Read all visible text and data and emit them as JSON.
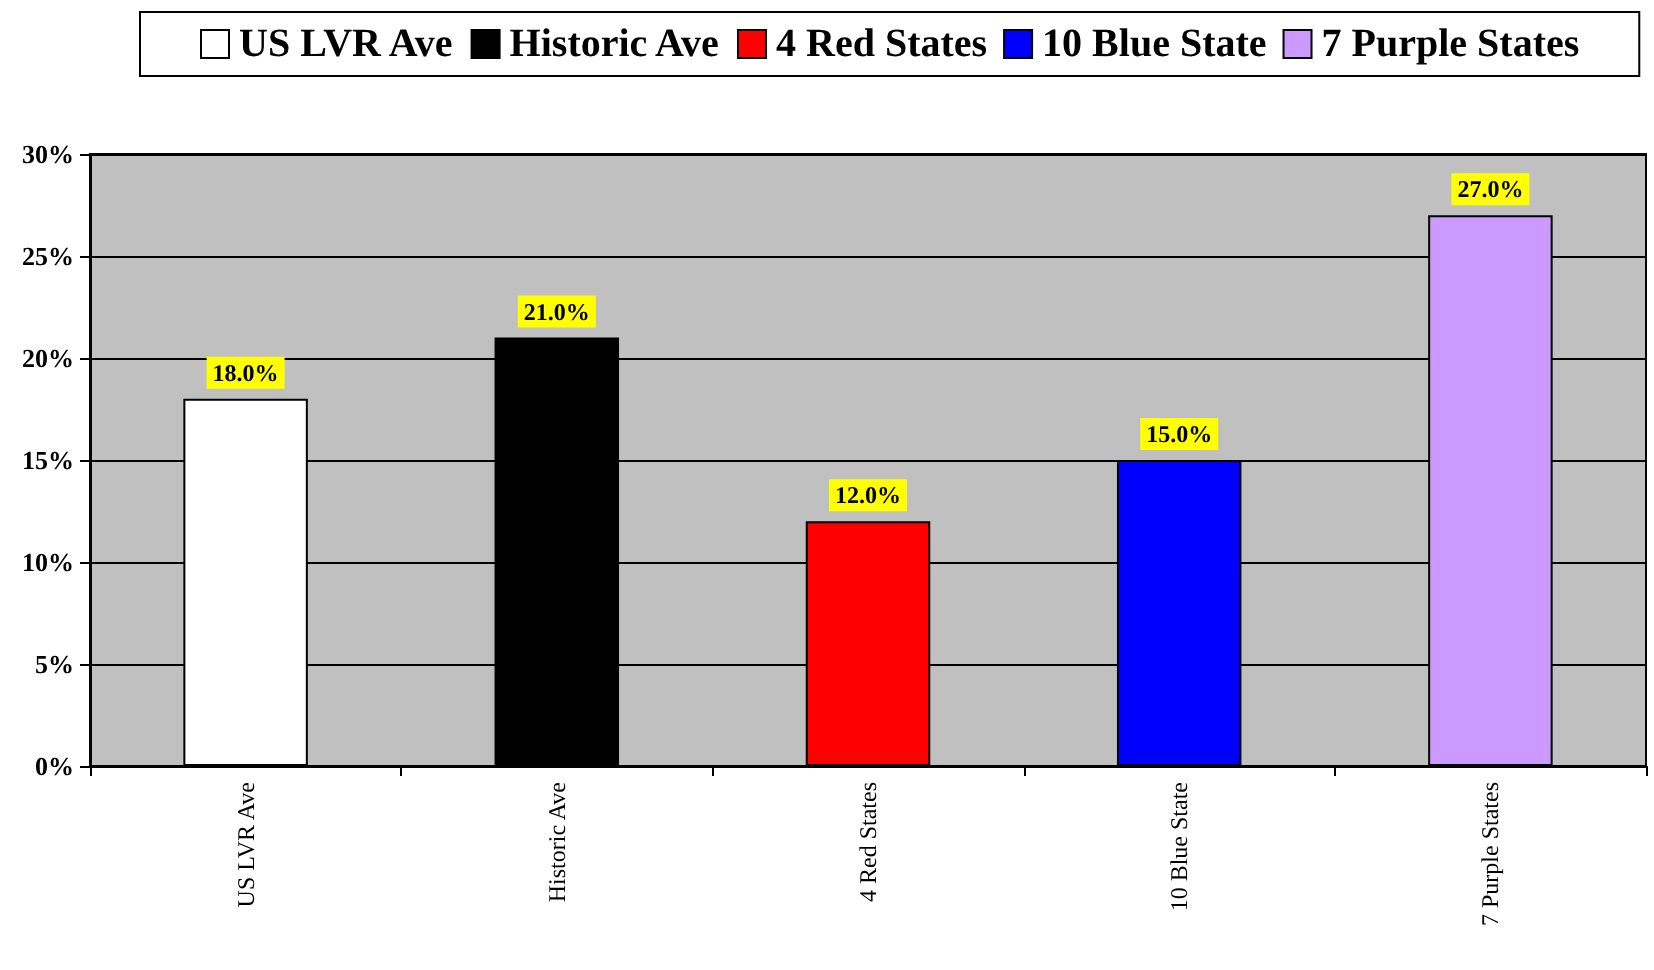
{
  "chart_data": {
    "type": "bar",
    "categories": [
      "US LVR Ave",
      "Historic Ave",
      "4 Red States",
      "10 Blue State",
      "7 Purple States"
    ],
    "series": [
      {
        "name": "US LVR Ave",
        "color": "#ffffff",
        "values": [
          18,
          null,
          null,
          null,
          null
        ],
        "value_labels": [
          "18.0%",
          null,
          null,
          null,
          null
        ]
      },
      {
        "name": "Historic Ave",
        "color": "#000000",
        "values": [
          null,
          21,
          null,
          null,
          null
        ],
        "value_labels": [
          null,
          "21.0%",
          null,
          null,
          null
        ]
      },
      {
        "name": "4 Red States",
        "color": "#ff0000",
        "values": [
          null,
          null,
          12,
          null,
          null
        ],
        "value_labels": [
          null,
          null,
          "12.0%",
          null,
          null
        ]
      },
      {
        "name": "10 Blue State",
        "color": "#0000ff",
        "values": [
          null,
          null,
          null,
          15,
          null
        ],
        "value_labels": [
          null,
          null,
          null,
          "15.0%",
          null
        ]
      },
      {
        "name": "7 Purple States",
        "color": "#cc99ff",
        "values": [
          null,
          null,
          null,
          null,
          27
        ],
        "value_labels": [
          null,
          null,
          null,
          null,
          "27.0%"
        ]
      }
    ],
    "ylim": [
      0,
      30
    ],
    "yticks": [
      {
        "value": 0,
        "label": "0%"
      },
      {
        "value": 5,
        "label": "5%"
      },
      {
        "value": 10,
        "label": "10%"
      },
      {
        "value": 15,
        "label": "15%"
      },
      {
        "value": 20,
        "label": "20%"
      },
      {
        "value": 25,
        "label": "25%"
      },
      {
        "value": 30,
        "label": "30%"
      }
    ],
    "grid": "y",
    "legend": "top"
  }
}
